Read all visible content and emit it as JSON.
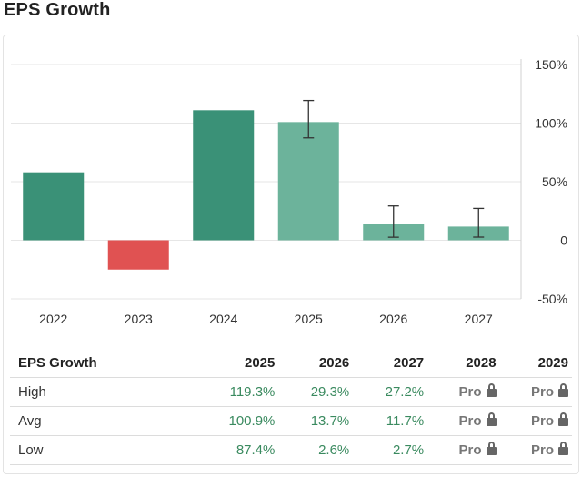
{
  "title": "EPS Growth",
  "chart_data": {
    "type": "bar",
    "categories": [
      "2022",
      "2023",
      "2024",
      "2025",
      "2026",
      "2027"
    ],
    "values": [
      58,
      -25,
      111,
      100.9,
      13.7,
      11.7
    ],
    "estimate": [
      false,
      false,
      false,
      true,
      true,
      true
    ],
    "error_high": [
      null,
      null,
      null,
      119.3,
      29.3,
      27.2
    ],
    "error_low": [
      null,
      null,
      null,
      87.4,
      2.6,
      2.7
    ],
    "y_ticks": [
      "150%",
      "100%",
      "50%",
      "0",
      "-50%"
    ],
    "y_tick_values": [
      150,
      100,
      50,
      0,
      -50
    ],
    "ylim": [
      -50,
      150
    ],
    "y_axis_side": "right",
    "grid": true,
    "colors": {
      "actual_positive": "#3a9177",
      "negative": "#e05252",
      "estimate": "#6cb39b"
    }
  },
  "table": {
    "headers": [
      "EPS Growth",
      "2025",
      "2026",
      "2027",
      "2028",
      "2029"
    ],
    "rows": [
      {
        "label": "High",
        "cells": [
          "119.3%",
          "29.3%",
          "27.2%",
          "Pro",
          "Pro"
        ]
      },
      {
        "label": "Avg",
        "cells": [
          "100.9%",
          "13.7%",
          "11.7%",
          "Pro",
          "Pro"
        ]
      },
      {
        "label": "Low",
        "cells": [
          "87.4%",
          "2.6%",
          "2.7%",
          "Pro",
          "Pro"
        ]
      }
    ]
  }
}
